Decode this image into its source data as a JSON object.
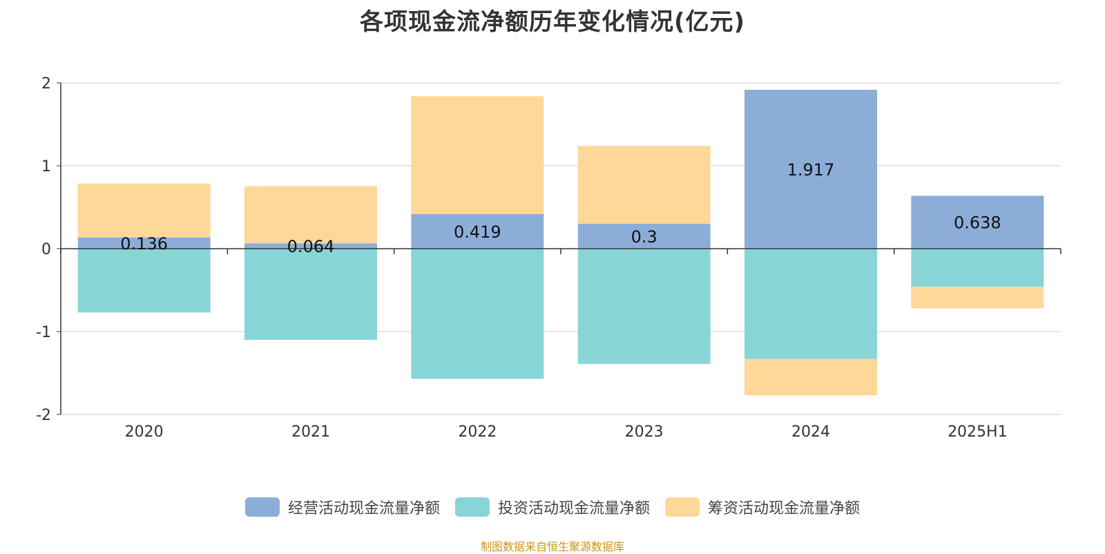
{
  "title": "各项现金流净额历年变化情况(亿元)",
  "source": "制图数据来自恒生聚源数据库",
  "colors": {
    "operating": "#8dadd9",
    "investing": "#88d5d8",
    "financing": "#fed898"
  },
  "legend": [
    {
      "label": "经营活动现金流量净额",
      "color": "#8dadd9"
    },
    {
      "label": "投资活动现金流量净额",
      "color": "#88d5d8"
    },
    {
      "label": "筹资活动现金流量净额",
      "color": "#fed898"
    }
  ],
  "chart_data": {
    "type": "bar",
    "stacked": true,
    "categories": [
      "2020",
      "2021",
      "2022",
      "2023",
      "2024",
      "2025H1"
    ],
    "ylim": [
      -2,
      2
    ],
    "yticks": [
      "2",
      "1",
      "0",
      "-1",
      "-2"
    ],
    "grid": true,
    "legend_position": "bottom",
    "series": [
      {
        "name": "经营活动现金流量净额",
        "values": [
          0.136,
          0.064,
          0.419,
          0.3,
          1.917,
          0.638
        ],
        "labels": [
          "0.136",
          "0.064",
          "0.419",
          "0.3",
          "1.917",
          "0.638"
        ]
      },
      {
        "name": "投资活动现金流量净额",
        "values": [
          -0.77,
          -1.1,
          -1.57,
          -1.39,
          -1.33,
          -0.46
        ]
      },
      {
        "name": "筹资活动现金流量净额",
        "values": [
          0.65,
          0.69,
          1.42,
          0.94,
          -0.44,
          -0.26
        ]
      }
    ]
  }
}
